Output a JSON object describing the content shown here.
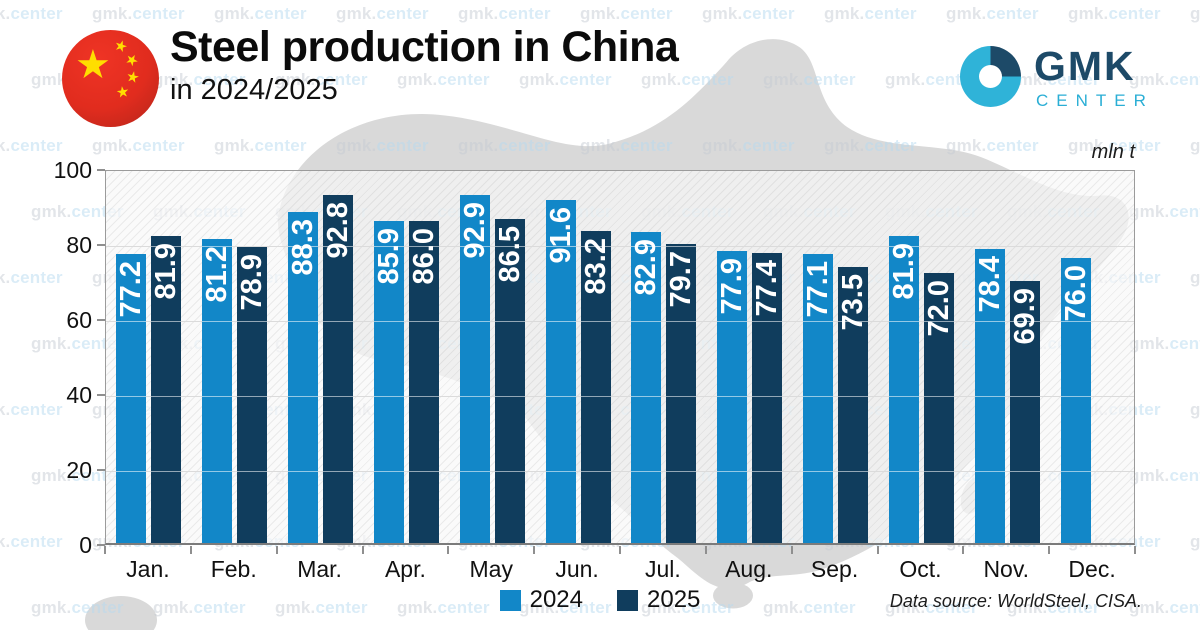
{
  "watermark": {
    "part1": "gmk.",
    "part2": "center"
  },
  "header": {
    "title": "Steel production in China",
    "subtitle": "in 2024/2025"
  },
  "logo": {
    "name": "GMK",
    "sub": "CENTER"
  },
  "chart_data": {
    "type": "bar",
    "title": "Steel production in China in 2024/2025",
    "unit_label": "mln t",
    "categories": [
      "Jan.",
      "Feb.",
      "Mar.",
      "Apr.",
      "May",
      "Jun.",
      "Jul.",
      "Aug.",
      "Sep.",
      "Oct.",
      "Nov.",
      "Dec."
    ],
    "series": [
      {
        "name": "2024",
        "color": "#1287C8",
        "values": [
          77.2,
          81.2,
          88.3,
          85.9,
          92.9,
          91.6,
          82.9,
          77.9,
          77.1,
          81.9,
          78.4,
          76.0
        ]
      },
      {
        "name": "2025",
        "color": "#103D5D",
        "values": [
          81.9,
          78.9,
          92.8,
          86.0,
          86.5,
          83.2,
          79.7,
          77.4,
          73.5,
          72.0,
          69.9,
          null
        ]
      }
    ],
    "ylim": [
      0,
      100
    ],
    "yticks": [
      0,
      20,
      40,
      60,
      80,
      100
    ],
    "grid": true,
    "legend_position": "bottom-center",
    "value_labels": "rotated-inside-bar-top"
  },
  "footer": {
    "data_source": "Data source: WorldSteel, CISA."
  }
}
